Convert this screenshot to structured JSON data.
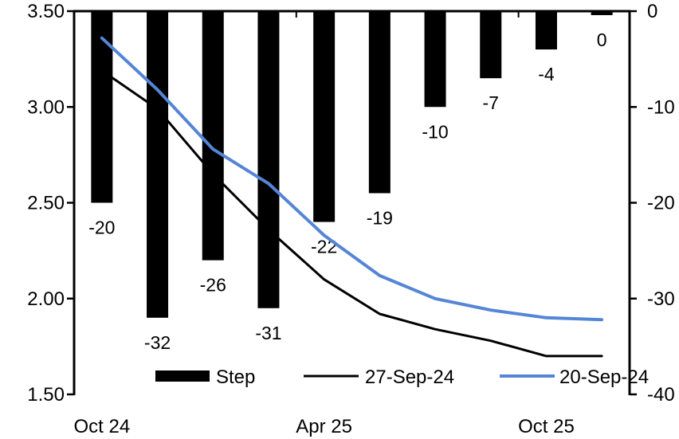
{
  "chart_data": {
    "type": "bar",
    "subtype": "combo-bar-line-dual-axis",
    "title": "",
    "num_categories": 10,
    "x_tick_labels": [
      {
        "index": 0,
        "label": "Oct 24"
      },
      {
        "index": 4,
        "label": "Apr 25"
      },
      {
        "index": 8,
        "label": "Oct 25"
      }
    ],
    "bar_series": {
      "name": "Step",
      "axis": "right",
      "color": "#000000",
      "values": [
        -20,
        -32,
        -26,
        -31,
        -22,
        -19,
        -10,
        -7,
        -4,
        0
      ],
      "data_labels": [
        "-20",
        "-32",
        "-26",
        "-31",
        "-22",
        "-19",
        "-10",
        "-7",
        "-4",
        "0"
      ]
    },
    "line_series": [
      {
        "name": "27-Sep-24",
        "axis": "left",
        "color": "#000000",
        "stroke_width": 3,
        "values": [
          3.19,
          2.99,
          2.65,
          2.36,
          2.1,
          1.92,
          1.84,
          1.78,
          1.7,
          1.7
        ]
      },
      {
        "name": "20-Sep-24",
        "axis": "left",
        "color": "#5585D6",
        "stroke_width": 4,
        "values": [
          3.36,
          3.09,
          2.78,
          2.6,
          2.33,
          2.12,
          2.0,
          1.94,
          1.9,
          1.89
        ]
      }
    ],
    "left_axis": {
      "min": 1.5,
      "max": 3.5,
      "tick_step": 0.5,
      "tick_labels": [
        "3.50",
        "3.00",
        "2.50",
        "2.00",
        "1.50"
      ]
    },
    "right_axis": {
      "min": -40,
      "max": 0,
      "tick_step": 10,
      "tick_labels": [
        "0",
        "-10",
        "-20",
        "-30",
        "-40"
      ]
    },
    "top_axis_tick_boundaries": [
      4,
      8
    ],
    "legend": {
      "position": "bottom",
      "entries": [
        {
          "label": "Step",
          "swatch": "bar",
          "color": "#000000"
        },
        {
          "label": "27-Sep-24",
          "swatch": "line",
          "color": "#000000"
        },
        {
          "label": "20-Sep-24",
          "swatch": "line",
          "color": "#5585D6"
        }
      ]
    },
    "grid": false,
    "background": "#ffffff"
  }
}
